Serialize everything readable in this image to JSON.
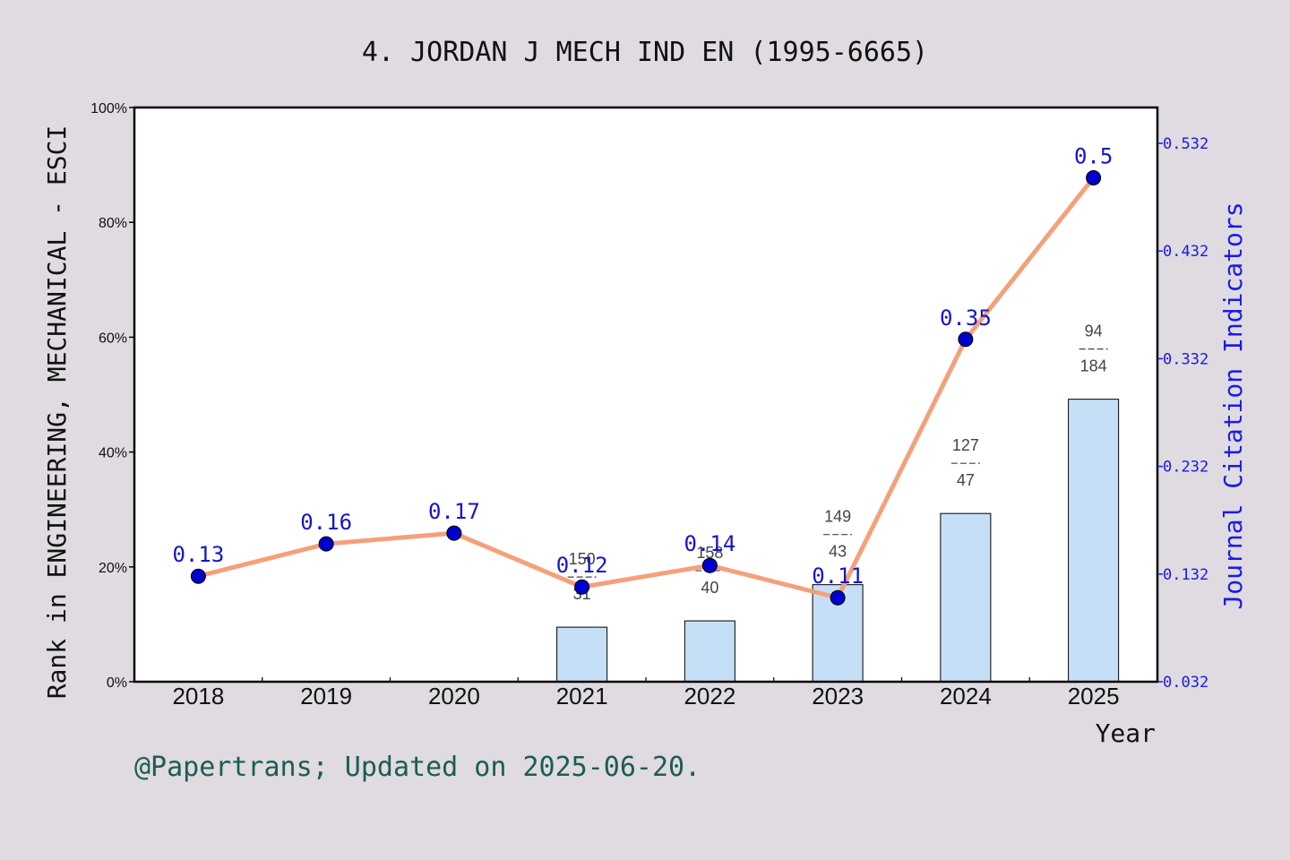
{
  "chart_data": {
    "type": "bar",
    "title": "4. JORDAN J MECH IND EN (1995-6665)",
    "xlabel": "Year",
    "ylabel_left": "Rank in ENGINEERING, MECHANICAL - ESCI",
    "ylabel_right": "Journal Citation Indicators",
    "footer": "@Papertrans; Updated on 2025-06-20.",
    "categories": [
      "2018",
      "2019",
      "2020",
      "2021",
      "2022",
      "2023",
      "2024",
      "2025"
    ],
    "left_axis": {
      "ylim": [
        0,
        100
      ],
      "ticks": [
        0,
        20,
        40,
        60,
        80,
        100
      ],
      "tick_labels": [
        "0%",
        "20%",
        "40%",
        "60%",
        "80%",
        "100%"
      ]
    },
    "right_axis": {
      "ylim": [
        0.032,
        0.5653
      ],
      "ticks": [
        0.032,
        0.132,
        0.232,
        0.332,
        0.432,
        0.532
      ],
      "tick_labels": [
        "0.032",
        "0.132",
        "0.232",
        "0.332",
        "0.432",
        "0.532"
      ]
    },
    "series": [
      {
        "type": "bar",
        "axis": "left",
        "values": [
          null,
          null,
          null,
          9.5,
          10.6,
          16.9,
          29.3,
          49.2
        ],
        "rank_labels": [
          null,
          null,
          null,
          {
            "top": "150",
            "bottom": "31"
          },
          {
            "top": "158",
            "bottom": "40"
          },
          {
            "top": "149",
            "bottom": "43"
          },
          {
            "top": "127",
            "bottom": "47"
          },
          {
            "top": "94",
            "bottom": "184"
          }
        ],
        "color": "#c5dff6"
      },
      {
        "type": "line",
        "axis": "right",
        "values": [
          0.13,
          0.16,
          0.17,
          0.12,
          0.14,
          0.11,
          0.35,
          0.5
        ],
        "labels": [
          "0.13",
          "0.16",
          "0.17",
          "0.12",
          "0.14",
          "0.11",
          "0.35",
          "0.5"
        ],
        "line_color": "#f5a07a",
        "marker_color": "#0000cc"
      }
    ]
  }
}
